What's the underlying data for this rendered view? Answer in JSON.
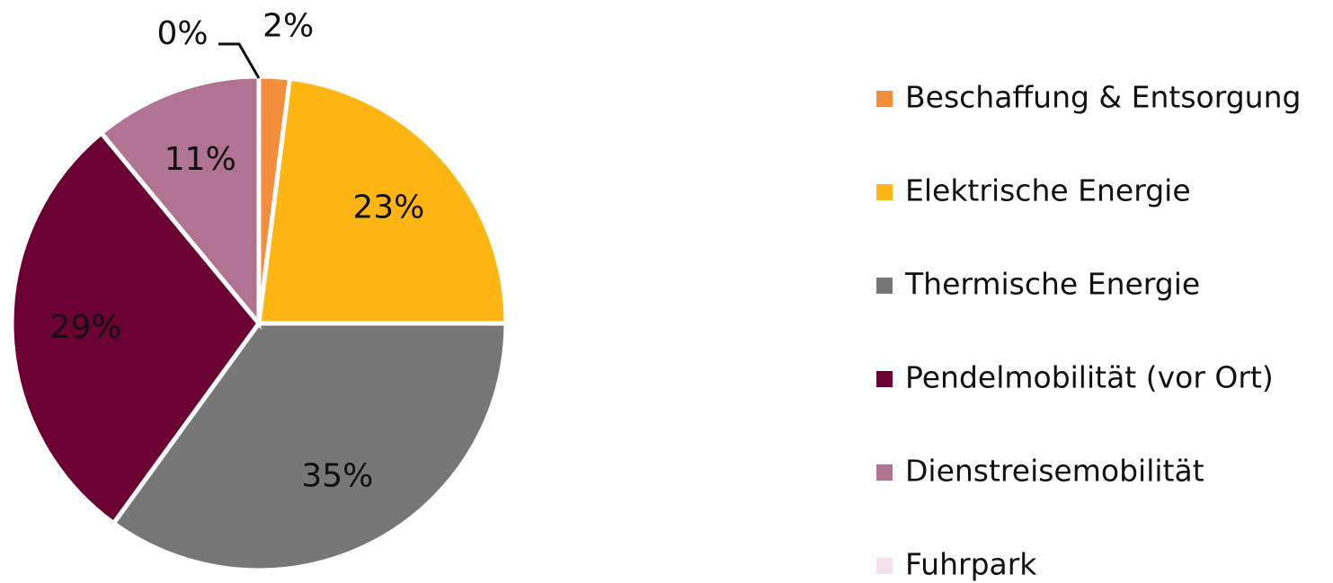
{
  "chart_data": {
    "type": "pie",
    "categories": [
      "Beschaffung & Entsorgung",
      "Elektrische Energie",
      "Thermische Energie",
      "Pendelmobilität (vor Ort)",
      "Dienstreisemobilität",
      "Fuhrpark"
    ],
    "values": [
      2,
      23,
      35,
      29,
      11,
      0
    ],
    "value_labels": [
      "2%",
      "23%",
      "35%",
      "29%",
      "11%",
      "0%"
    ],
    "colors": [
      "#f28e3c",
      "#ffb612",
      "#777777",
      "#6b0033",
      "#b07492",
      "#f3e4ec"
    ],
    "legend": "right"
  }
}
